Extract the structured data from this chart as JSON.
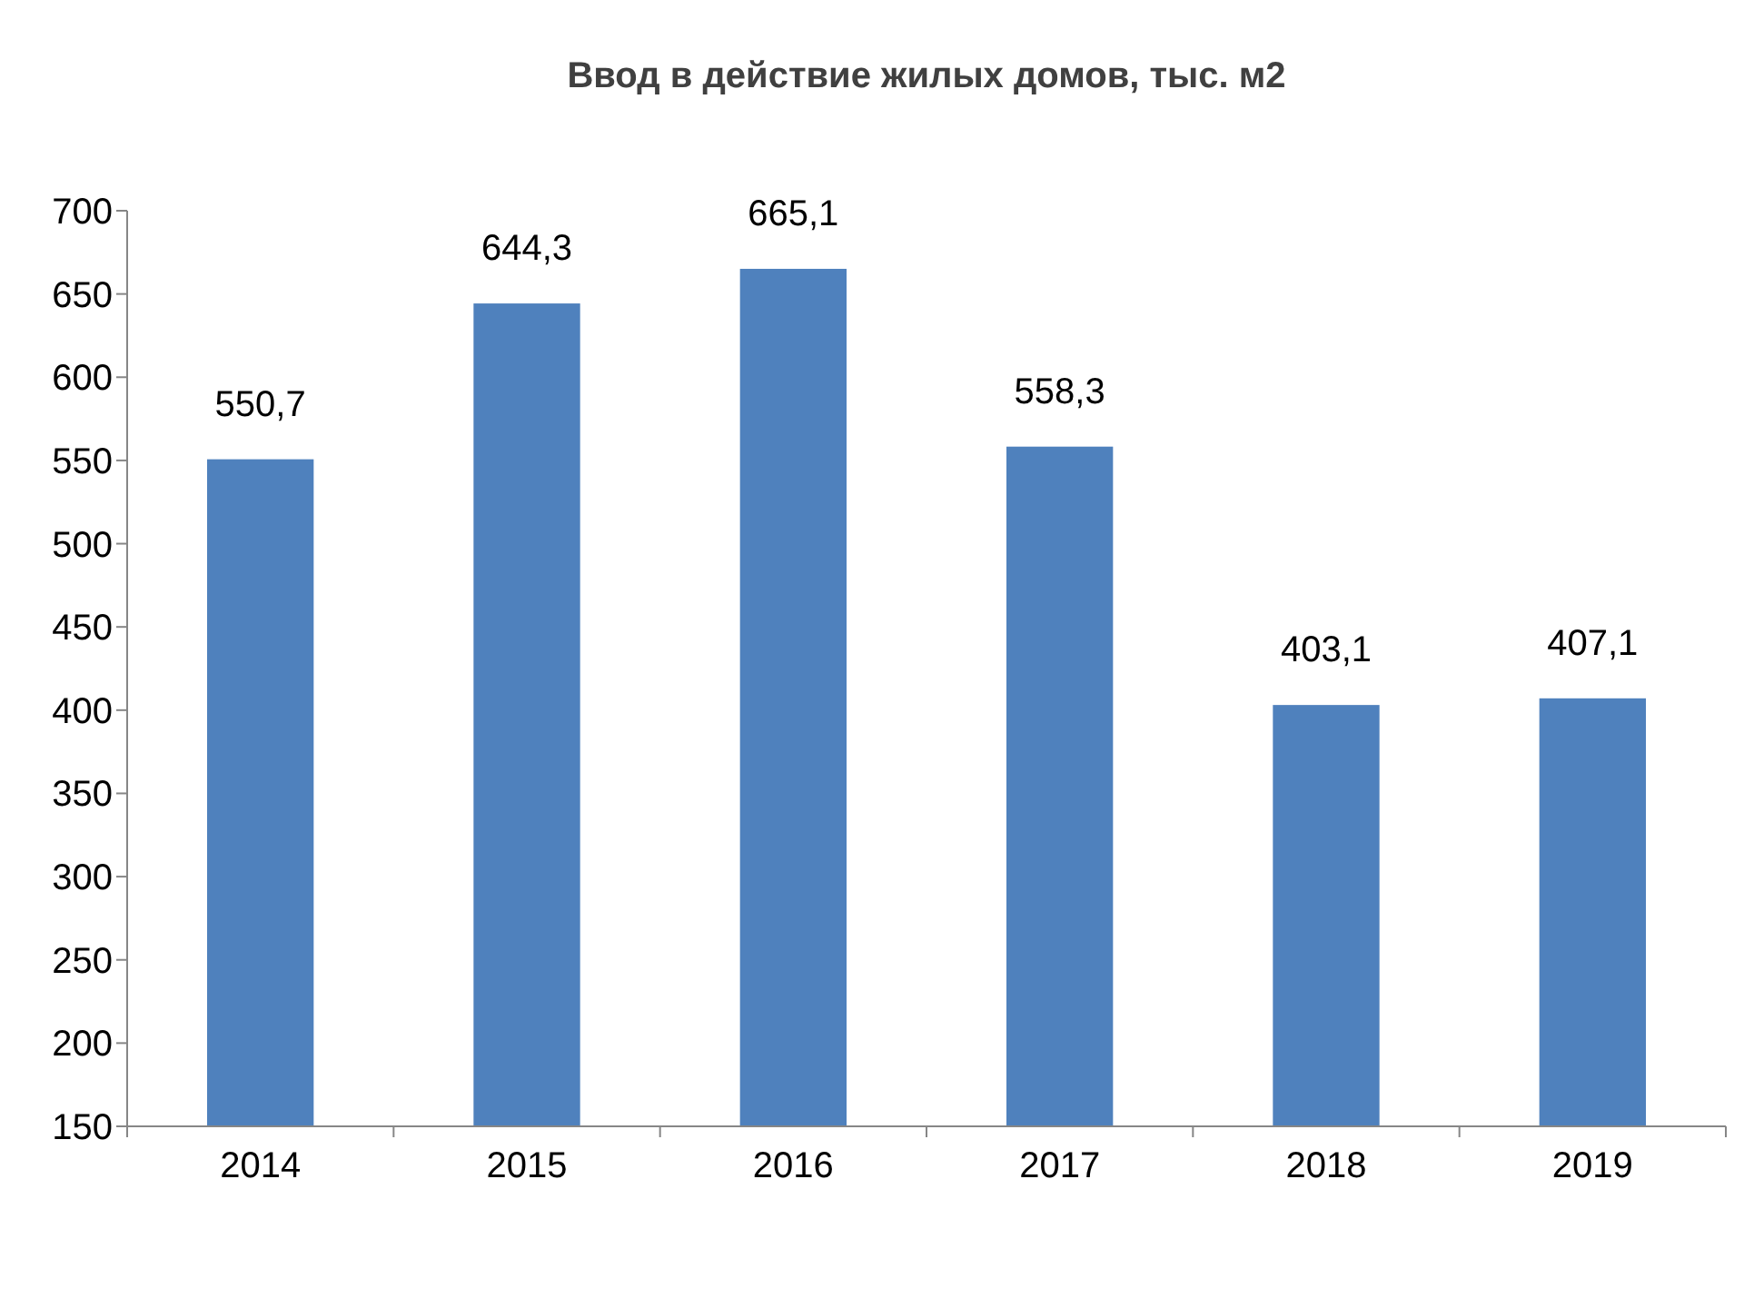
{
  "chart_data": {
    "type": "bar",
    "title": "Ввод в действие жилых домов, тыс. м2",
    "categories": [
      "2014",
      "2015",
      "2016",
      "2017",
      "2018",
      "2019"
    ],
    "values": [
      550.7,
      644.3,
      665.1,
      558.3,
      403.1,
      407.1
    ],
    "value_labels": [
      "550,7",
      "644,3",
      "665,1",
      "558,3",
      "403,1",
      "407,1"
    ],
    "color": "#4f81bd",
    "ylim": [
      150,
      700
    ],
    "yticks": [
      150,
      200,
      250,
      300,
      350,
      400,
      450,
      500,
      550,
      600,
      650,
      700
    ],
    "grid": false
  }
}
